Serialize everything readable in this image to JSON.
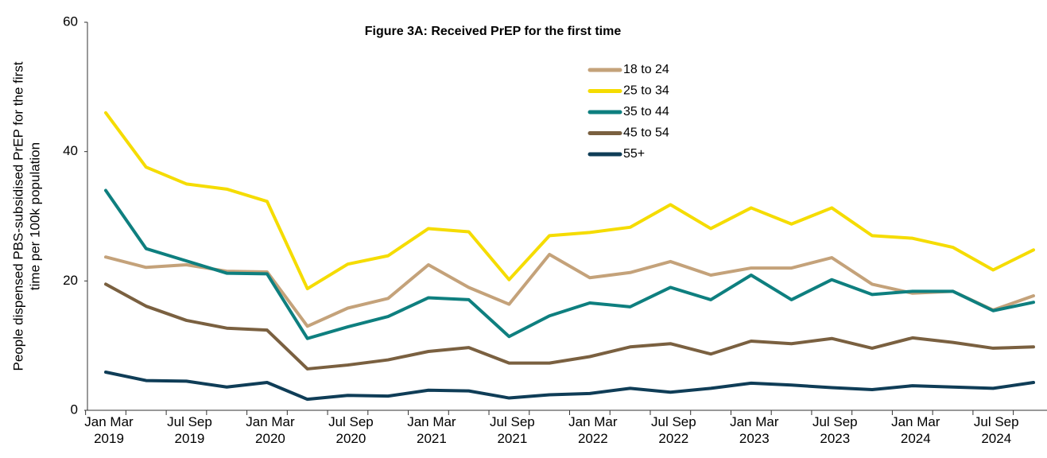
{
  "chart_data": {
    "type": "line",
    "title": "Figure 3A: Received PrEP for the first time",
    "ylabel": [
      "People  dispensed PBS-subsidised PrEP for the first",
      "time per 100k population"
    ],
    "categories": [
      "Jan Mar 2019",
      null,
      "Jul Sep 2019",
      null,
      "Jan Mar 2020",
      null,
      "Jul Sep 2020",
      null,
      "Jan Mar 2021",
      null,
      "Jul Sep 2021",
      null,
      "Jan Mar 2022",
      null,
      "Jul Sep 2022",
      null,
      "Jan Mar 2023",
      null,
      "Jul Sep 2023",
      null,
      "Jan Mar 2024",
      null,
      "Jul Sep 2024",
      null
    ],
    "ylim": [
      0,
      60
    ],
    "yticks": [
      0,
      20,
      40,
      60
    ],
    "grid": false,
    "legend": "top",
    "series": [
      {
        "name": "18 to 24",
        "color": "#c4a27a",
        "values": [
          23.7,
          22.1,
          22.5,
          21.5,
          21.4,
          13,
          15.8,
          17.3,
          22.5,
          19,
          16.4,
          24.1,
          20.5,
          21.3,
          23,
          20.9,
          22,
          22,
          23.6,
          19.5,
          18.1,
          18.4,
          15.5,
          17.7
        ]
      },
      {
        "name": "25 to 34",
        "color": "#f5dc00",
        "values": [
          46,
          37.6,
          35,
          34.2,
          32.3,
          18.8,
          22.6,
          23.9,
          28.1,
          27.6,
          20.2,
          27,
          27.5,
          28.3,
          31.8,
          28.1,
          31.3,
          28.8,
          31.3,
          27,
          26.6,
          25.2,
          21.7,
          24.8
        ]
      },
      {
        "name": "35 to 44",
        "color": "#0e7f7f",
        "values": [
          34,
          25,
          23.1,
          21.2,
          21.1,
          11.1,
          12.9,
          14.5,
          17.4,
          17.1,
          11.4,
          14.6,
          16.6,
          16,
          19,
          17.1,
          20.9,
          17.1,
          20.2,
          17.9,
          18.4,
          18.4,
          15.4,
          16.7
        ]
      },
      {
        "name": "45 to 54",
        "color": "#7a6040",
        "values": [
          19.5,
          16.1,
          13.9,
          12.7,
          12.4,
          6.4,
          7,
          7.8,
          9.1,
          9.7,
          7.3,
          7.3,
          8.3,
          9.8,
          10.3,
          8.7,
          10.7,
          10.3,
          11.1,
          9.6,
          11.2,
          10.5,
          9.6,
          9.8
        ]
      },
      {
        "name": "55+",
        "color": "#0f3d57",
        "values": [
          5.9,
          4.6,
          4.5,
          3.6,
          4.3,
          1.7,
          2.3,
          2.2,
          3.1,
          3,
          1.9,
          2.4,
          2.6,
          3.4,
          2.8,
          3.4,
          4.2,
          3.9,
          3.5,
          3.2,
          3.8,
          3.6,
          3.4,
          4.3
        ]
      }
    ]
  }
}
